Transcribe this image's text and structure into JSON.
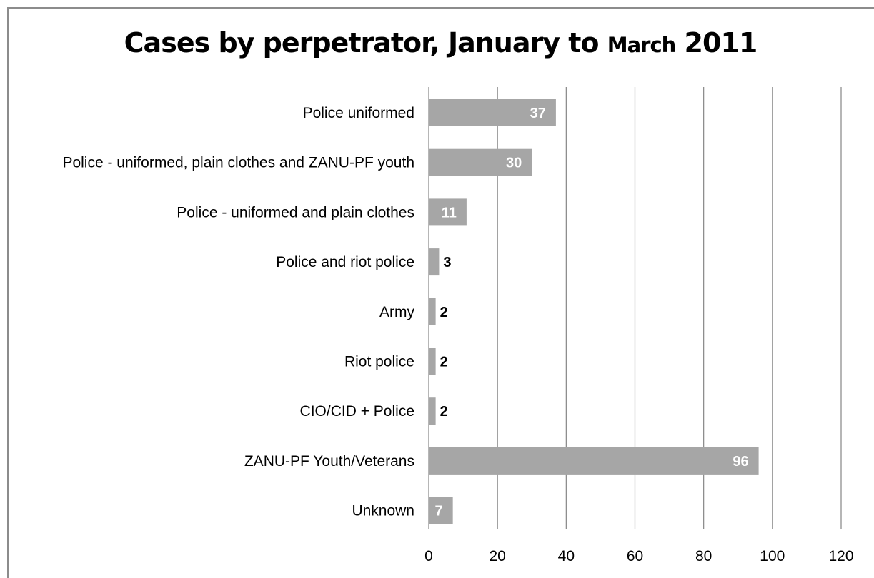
{
  "chart_data": {
    "type": "bar",
    "orientation": "horizontal",
    "title_parts": [
      "Cases by perpetrator, January to ",
      "March",
      " 2011"
    ],
    "categories": [
      "Police uniformed",
      "Police - uniformed, plain clothes and ZANU-PF youth",
      "Police - uniformed and plain clothes",
      "Police and riot police",
      "Army",
      "Riot police",
      "CIO/CID + Police",
      "ZANU-PF Youth/Veterans",
      "Unknown"
    ],
    "values": [
      37,
      30,
      11,
      3,
      2,
      2,
      2,
      96,
      7
    ],
    "xlim": [
      0,
      120
    ],
    "xticks": [
      0,
      20,
      40,
      60,
      80,
      100,
      120
    ],
    "grid": true,
    "legend": "none",
    "bar_color": "#a6a6a6",
    "grid_color": "#868686"
  }
}
